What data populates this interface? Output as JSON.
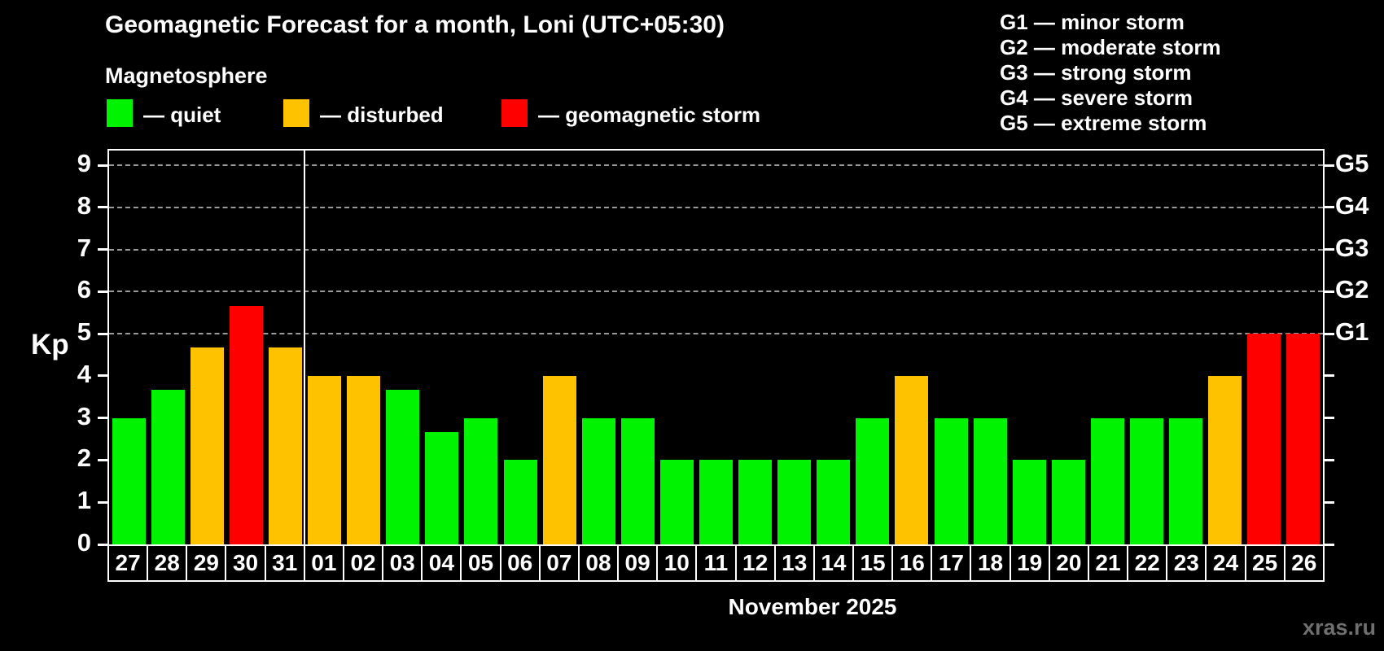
{
  "title": "Geomagnetic Forecast for a month, Loni (UTC+05:30)",
  "subtitle": "Magnetosphere",
  "legend": {
    "quiet_label": "— quiet",
    "disturbed_label": "— disturbed",
    "storm_label": "— geomagnetic storm"
  },
  "storm_scale_legend": [
    "G1 — minor storm",
    "G2 — moderate storm",
    "G3 — strong storm",
    "G4 — severe storm",
    "G5 — extreme storm"
  ],
  "axis": {
    "y_label": "Kp",
    "x_label": "November 2025"
  },
  "watermark": "xras.ru",
  "colors": {
    "quiet": "#00f300",
    "disturbed": "#ffc200",
    "storm": "#ff0000",
    "grid": "#9a9a9a",
    "frame": "#ffffff",
    "watermark_text": "#6f6f6f",
    "background": "#000000"
  },
  "chart_data": {
    "type": "bar",
    "title": "Geomagnetic Forecast for a month, Loni (UTC+05:30)",
    "xlabel": "November 2025",
    "ylabel": "Kp",
    "ylim": [
      0,
      9.35
    ],
    "yticks": [
      0,
      1,
      2,
      3,
      4,
      5,
      6,
      7,
      8,
      9
    ],
    "gridlines_at": [
      5,
      6,
      7,
      8,
      9
    ],
    "grid": "dashed horizontal at storm levels only",
    "legend_position": "above-left and above-right",
    "right_axis_labels": [
      {
        "kp": 5,
        "label": "G1"
      },
      {
        "kp": 6,
        "label": "G2"
      },
      {
        "kp": 7,
        "label": "G3"
      },
      {
        "kp": 8,
        "label": "G4"
      },
      {
        "kp": 9,
        "label": "G5"
      }
    ],
    "month_separator_after_index": 4,
    "categories": [
      "27",
      "28",
      "29",
      "30",
      "31",
      "01",
      "02",
      "03",
      "04",
      "05",
      "06",
      "07",
      "08",
      "09",
      "10",
      "11",
      "12",
      "13",
      "14",
      "15",
      "16",
      "17",
      "18",
      "19",
      "20",
      "21",
      "22",
      "23",
      "24",
      "25",
      "26"
    ],
    "values": [
      3,
      3.67,
      4.67,
      5.67,
      4.67,
      4,
      4,
      3.67,
      2.67,
      3,
      2,
      4,
      3,
      3,
      2,
      2,
      2,
      2,
      2,
      3,
      4,
      3,
      3,
      2,
      2,
      3,
      3,
      3,
      4,
      5,
      5
    ],
    "status": [
      "quiet",
      "quiet",
      "disturbed",
      "storm",
      "disturbed",
      "disturbed",
      "disturbed",
      "quiet",
      "quiet",
      "quiet",
      "quiet",
      "disturbed",
      "quiet",
      "quiet",
      "quiet",
      "quiet",
      "quiet",
      "quiet",
      "quiet",
      "quiet",
      "disturbed",
      "quiet",
      "quiet",
      "quiet",
      "quiet",
      "quiet",
      "quiet",
      "quiet",
      "disturbed",
      "storm",
      "storm"
    ]
  }
}
